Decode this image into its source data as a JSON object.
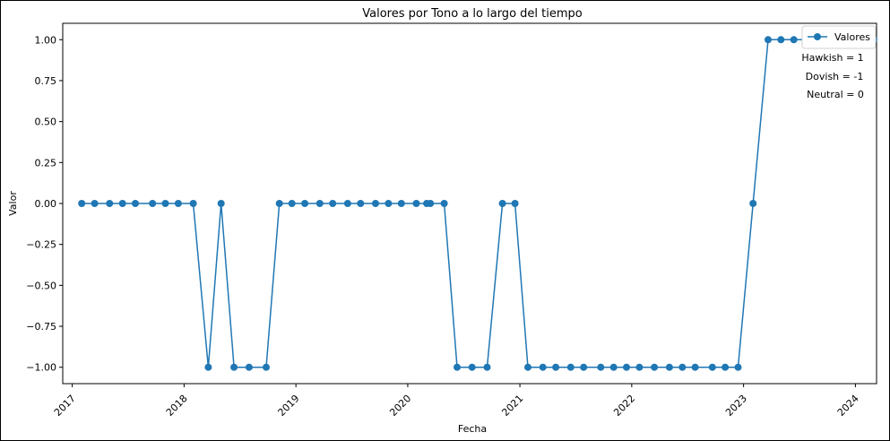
{
  "chart_data": {
    "type": "line",
    "title": "Valores por Tono a lo largo del tiempo",
    "xlabel": "Fecha",
    "ylabel": "Valor",
    "xlim": [
      "2016-12-01",
      "2024-03-10"
    ],
    "ylim": [
      -1.1,
      1.1
    ],
    "yticks": [
      1.0,
      0.75,
      0.5,
      0.25,
      0.0,
      -0.25,
      -0.5,
      -0.75,
      -1.0
    ],
    "ytick_labels": [
      "1.00",
      "0.75",
      "0.50",
      "0.25",
      "0.00",
      "−0.25",
      "−0.50",
      "−0.75",
      "−1.00"
    ],
    "xticks": [
      "2017-01-01",
      "2018-01-01",
      "2019-01-01",
      "2020-01-01",
      "2021-01-01",
      "2022-01-01",
      "2023-01-01",
      "2024-01-01"
    ],
    "xtick_labels": [
      "2017",
      "2018",
      "2019",
      "2020",
      "2021",
      "2022",
      "2023",
      "2024"
    ],
    "grid": false,
    "legend_position": "top-right",
    "legend_entries": [
      "Valores"
    ],
    "annotations": [
      "Hawkish = 1",
      "Dovish = -1",
      "Neutral = 0"
    ],
    "series_color": "#1f77b4",
    "series": [
      {
        "name": "Valores",
        "x": [
          "2017-02-01",
          "2017-03-15",
          "2017-05-03",
          "2017-06-14",
          "2017-07-26",
          "2017-09-20",
          "2017-11-01",
          "2017-12-13",
          "2018-01-31",
          "2018-03-21",
          "2018-05-02",
          "2018-06-13",
          "2018-08-01",
          "2018-09-26",
          "2018-11-08",
          "2018-12-19",
          "2019-01-30",
          "2019-03-20",
          "2019-05-01",
          "2019-06-19",
          "2019-07-31",
          "2019-09-18",
          "2019-10-30",
          "2019-12-11",
          "2020-01-29",
          "2020-03-03",
          "2020-03-15",
          "2020-04-29",
          "2020-06-10",
          "2020-07-29",
          "2020-09-16",
          "2020-11-05",
          "2020-12-16",
          "2021-01-27",
          "2021-03-17",
          "2021-04-28",
          "2021-06-16",
          "2021-07-28",
          "2021-09-22",
          "2021-11-03",
          "2021-12-15",
          "2022-01-26",
          "2022-03-16",
          "2022-05-04",
          "2022-06-15",
          "2022-07-27",
          "2022-09-21",
          "2022-11-02",
          "2022-12-14",
          "2023-02-01",
          "2023-03-22",
          "2023-05-03",
          "2023-06-14",
          "2023-07-26",
          "2023-09-20",
          "2023-11-01",
          "2023-12-13",
          "2024-01-31",
          "2024-03-01"
        ],
        "y": [
          0,
          0,
          0,
          0,
          0,
          0,
          0,
          0,
          0,
          -1,
          0,
          -1,
          -1,
          -1,
          0,
          0,
          0,
          0,
          0,
          0,
          0,
          0,
          0,
          0,
          0,
          0,
          0,
          0,
          -1,
          -1,
          -1,
          0,
          0,
          -1,
          -1,
          -1,
          -1,
          -1,
          -1,
          -1,
          -1,
          -1,
          -1,
          -1,
          -1,
          -1,
          -1,
          -1,
          -1,
          0,
          1,
          1,
          1,
          1,
          1,
          1,
          1,
          1,
          1
        ]
      }
    ]
  }
}
